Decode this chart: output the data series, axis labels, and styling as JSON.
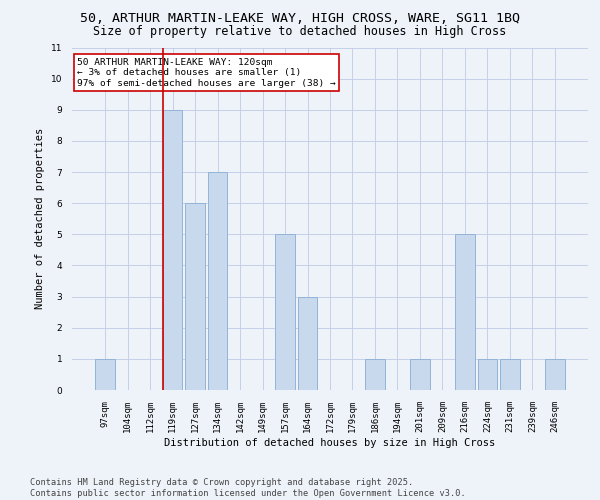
{
  "title_line1": "50, ARTHUR MARTIN-LEAKE WAY, HIGH CROSS, WARE, SG11 1BQ",
  "title_line2": "Size of property relative to detached houses in High Cross",
  "xlabel": "Distribution of detached houses by size in High Cross",
  "ylabel": "Number of detached properties",
  "categories": [
    "97sqm",
    "104sqm",
    "112sqm",
    "119sqm",
    "127sqm",
    "134sqm",
    "142sqm",
    "149sqm",
    "157sqm",
    "164sqm",
    "172sqm",
    "179sqm",
    "186sqm",
    "194sqm",
    "201sqm",
    "209sqm",
    "216sqm",
    "224sqm",
    "231sqm",
    "239sqm",
    "246sqm"
  ],
  "values": [
    1,
    0,
    0,
    9,
    6,
    7,
    0,
    0,
    5,
    3,
    0,
    0,
    1,
    0,
    1,
    0,
    5,
    1,
    1,
    0,
    1
  ],
  "bar_color": "#c8d9ee",
  "bar_edge_color": "#93b4d8",
  "highlight_index": 3,
  "redline_color": "#cc0000",
  "ylim": [
    0,
    11
  ],
  "yticks": [
    0,
    1,
    2,
    3,
    4,
    5,
    6,
    7,
    8,
    9,
    10,
    11
  ],
  "annotation_text": "50 ARTHUR MARTIN-LEAKE WAY: 120sqm\n← 3% of detached houses are smaller (1)\n97% of semi-detached houses are larger (38) →",
  "annotation_box_facecolor": "#ffffff",
  "annotation_box_edgecolor": "#cc0000",
  "footer_line1": "Contains HM Land Registry data © Crown copyright and database right 2025.",
  "footer_line2": "Contains public sector information licensed under the Open Government Licence v3.0.",
  "bg_color": "#eef2f9",
  "grid_color": "#c5cfe8",
  "title1_fontsize": 9.5,
  "title2_fontsize": 8.5,
  "axis_label_fontsize": 7.5,
  "tick_fontsize": 6.5,
  "annotation_fontsize": 6.8,
  "footer_fontsize": 6.2
}
